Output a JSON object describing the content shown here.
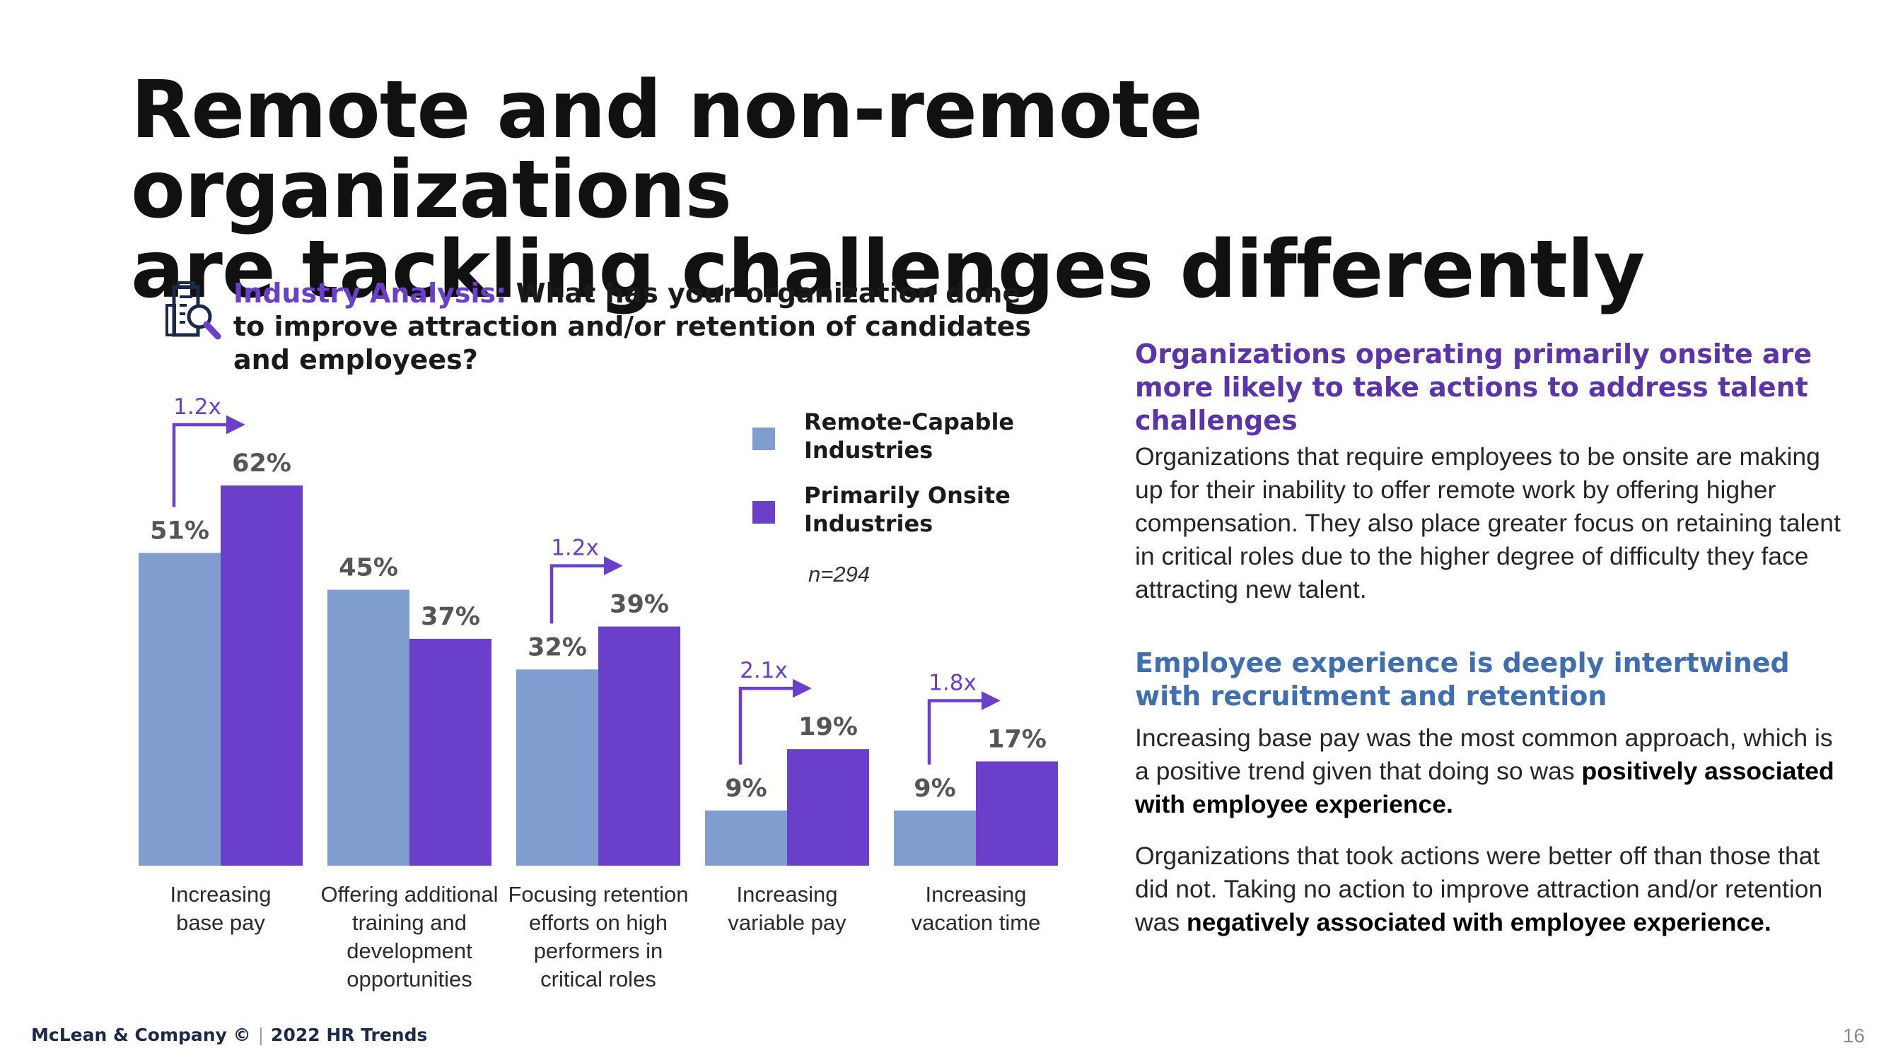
{
  "title": {
    "line1": "Remote and non-remote organizations",
    "line2": "are tackling challenges differently"
  },
  "question": {
    "icon": "building-search-icon",
    "prefix": "Industry Analysis:",
    "text": "What has your organization done to improve attraction and/or retention of candidates and employees?"
  },
  "legend": {
    "remote": "Remote-Capable Industries",
    "onsite": "Primarily Onsite Industries",
    "n": "n=294"
  },
  "colors": {
    "remote": "#7f9ecf",
    "onsite": "#6a3fc9",
    "accent": "#6a3fc9",
    "heading_purple": "#5b35a8",
    "heading_blue": "#3f6fb0"
  },
  "chart_data": {
    "type": "bar",
    "title": "What has your organization done to improve attraction and/or retention of candidates and employees?",
    "categories": [
      "Increasing base pay",
      "Offering additional training and development opportunities",
      "Focusing retention efforts on high performers in critical roles",
      "Increasing variable pay",
      "Increasing vacation time"
    ],
    "category_lines": [
      [
        "Increasing",
        "base pay"
      ],
      [
        "Offering additional",
        "training and",
        "development",
        "opportunities"
      ],
      [
        "Focusing retention",
        "efforts on high",
        "performers in",
        "critical roles"
      ],
      [
        "Increasing",
        "variable pay"
      ],
      [
        "Increasing",
        "vacation time"
      ]
    ],
    "series": [
      {
        "name": "Remote-Capable Industries",
        "values": [
          51,
          45,
          32,
          9,
          9
        ],
        "labels": [
          "51%",
          "45%",
          "32%",
          "9%",
          "9%"
        ]
      },
      {
        "name": "Primarily Onsite Industries",
        "values": [
          62,
          37,
          39,
          19,
          17
        ],
        "labels": [
          "62%",
          "37%",
          "39%",
          "19%",
          "17%"
        ]
      }
    ],
    "multipliers": [
      "1.2x",
      null,
      "1.2x",
      "2.1x",
      "1.8x"
    ],
    "ylim": [
      0,
      62
    ],
    "xlabel": "",
    "ylabel": "",
    "grid": false
  },
  "side": {
    "heading1": "Organizations operating primarily onsite are more likely to take actions to address talent challenges",
    "body1": "Organizations that require employees to be onsite are making up for their inability to offer remote work by offering higher compensation. They also place greater focus on retaining talent in critical roles due to the higher degree of difficulty they face attracting new talent.",
    "heading2": "Employee experience is deeply intertwined with recruitment and retention",
    "body2a": "Increasing base pay was the most common approach, which is a positive trend given that doing so was",
    "body2a_strong": "positively associated with employee experience.",
    "body2b": "Organizations that took actions were better off than those that did not. Taking no action to improve attraction and/or retention was",
    "body2b_strong": "negatively associated with employee experience."
  },
  "footer": {
    "company": "McLean & Company ©",
    "report": "2022 HR Trends",
    "page": "16"
  }
}
